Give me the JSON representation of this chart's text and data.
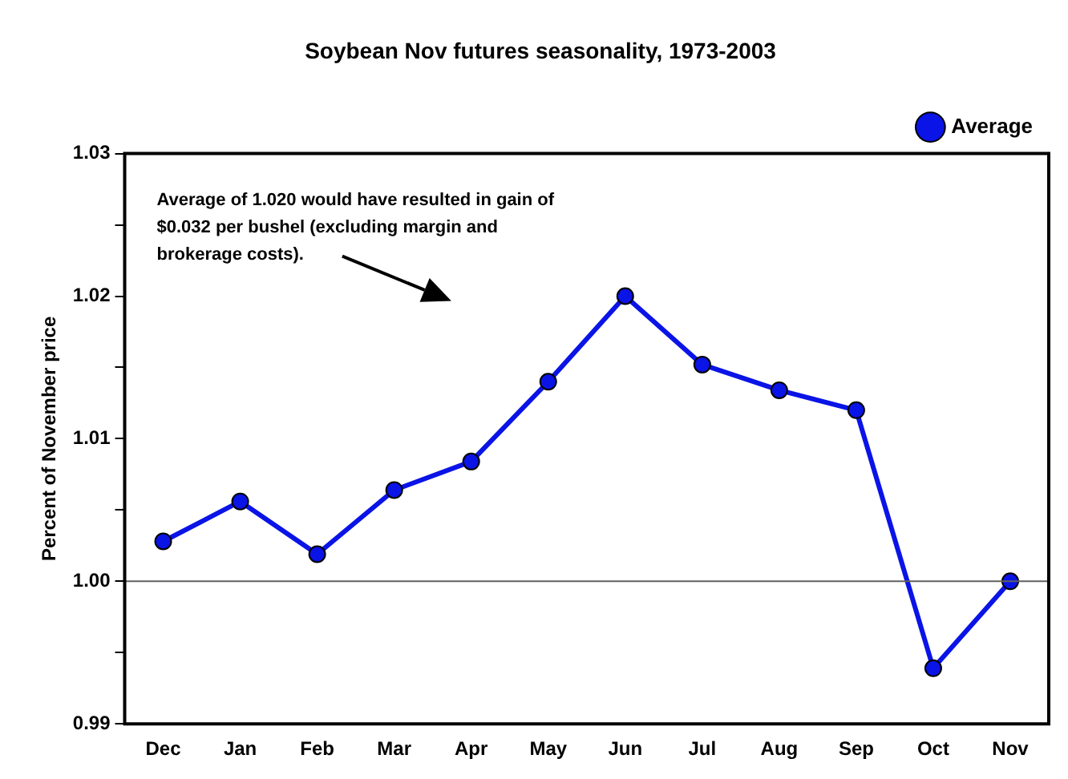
{
  "chart_data": {
    "type": "line",
    "title": "Soybean Nov futures seasonality, 1973-2003",
    "ylabel": "Percent of November price",
    "categories": [
      "Dec",
      "Jan",
      "Feb",
      "Mar",
      "Apr",
      "May",
      "Jun",
      "Jul",
      "Aug",
      "Sep",
      "Oct",
      "Nov"
    ],
    "series": [
      {
        "name": "Average",
        "color": "#0a14e6",
        "values": [
          1.0028,
          1.0056,
          1.0019,
          1.0064,
          1.0084,
          1.014,
          1.02,
          1.0152,
          1.0134,
          1.012,
          0.9939,
          1.0
        ]
      }
    ],
    "ylim": [
      0.99,
      1.03
    ],
    "yticks": [
      0.99,
      {
        "value": 0.995,
        "label": null
      },
      {
        "value": 1,
        "label": "1.00"
      },
      {
        "value": 1.005,
        "label": null
      },
      1.01,
      {
        "value": 1.015,
        "label": null
      },
      1.02,
      {
        "value": 1.025,
        "label": null
      },
      1.03
    ],
    "ref_lines": [
      {
        "axis": "y",
        "value": 1,
        "color": "#606060"
      }
    ],
    "annotations": [
      "Average of 1.020 would have resulted in gain of $0.032 per bushel (excluding margin and brokerage costs)."
    ],
    "legend": "top right",
    "marker": "circle",
    "line_style": "solid",
    "grid": false
  }
}
